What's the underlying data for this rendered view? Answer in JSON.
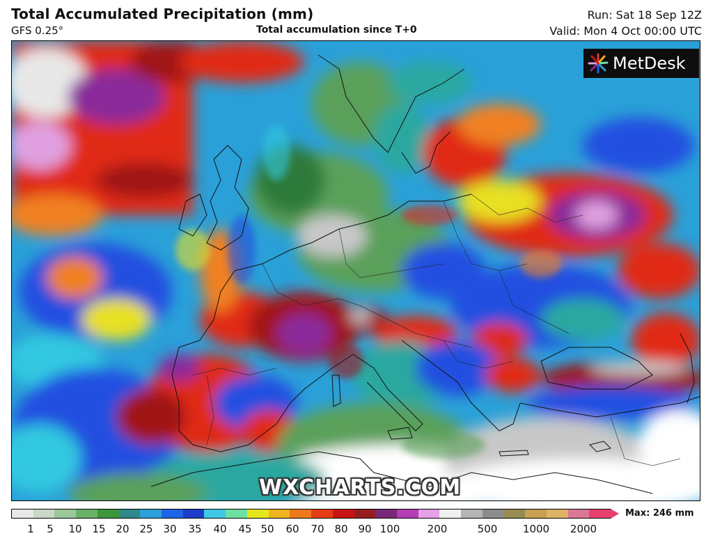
{
  "header": {
    "title": "Total Accumulated Precipitation (mm)",
    "model": "GFS 0.25°",
    "subtitle": "Total accumulation since T+0",
    "run": "Run: Sat 18 Sep 12Z",
    "valid": "Valid: Mon 4 Oct 00:00 UTC"
  },
  "logo": {
    "text": "MetDesk",
    "icon": "metdesk-starburst-icon"
  },
  "watermark": "WXCHARTS.COM",
  "colorbar": {
    "labels": [
      "1",
      "5",
      "10",
      "15",
      "20",
      "25",
      "30",
      "35",
      "40",
      "45",
      "50",
      "60",
      "70",
      "80",
      "90",
      "100",
      "200",
      "500",
      "1000",
      "2000"
    ],
    "max_text": "Max: 246 mm",
    "colors": [
      "#e8e8e8",
      "#c8d8c8",
      "#9cc89c",
      "#6ab06a",
      "#3c963c",
      "#2e8a8a",
      "#2aa0d8",
      "#1e64e6",
      "#1e3cc8",
      "#3cc8e6",
      "#6ee0a0",
      "#e6e61e",
      "#f0b41e",
      "#f0781e",
      "#e63c14",
      "#c81414",
      "#961e1e",
      "#782878",
      "#b43cb4",
      "#e6a0e6",
      "#f0f0f0",
      "#b4b4b4",
      "#8c8c8c",
      "#968c50",
      "#c8a050",
      "#dcb464",
      "#dc7896",
      "#e8406e"
    ]
  },
  "map_palette": {
    "dry": "#ffffff",
    "light": "#c8c8c8",
    "green": "#5aa05a",
    "green_dark": "#2e7a3a",
    "teal": "#2aa8a0",
    "cyan": "#30c8e0",
    "blue": "#2050e0",
    "yellow": "#e8e020",
    "orange": "#f08020",
    "red": "#e02a18",
    "darkred": "#a01818",
    "purple": "#8a2a9a",
    "pink": "#e0a0e0"
  }
}
